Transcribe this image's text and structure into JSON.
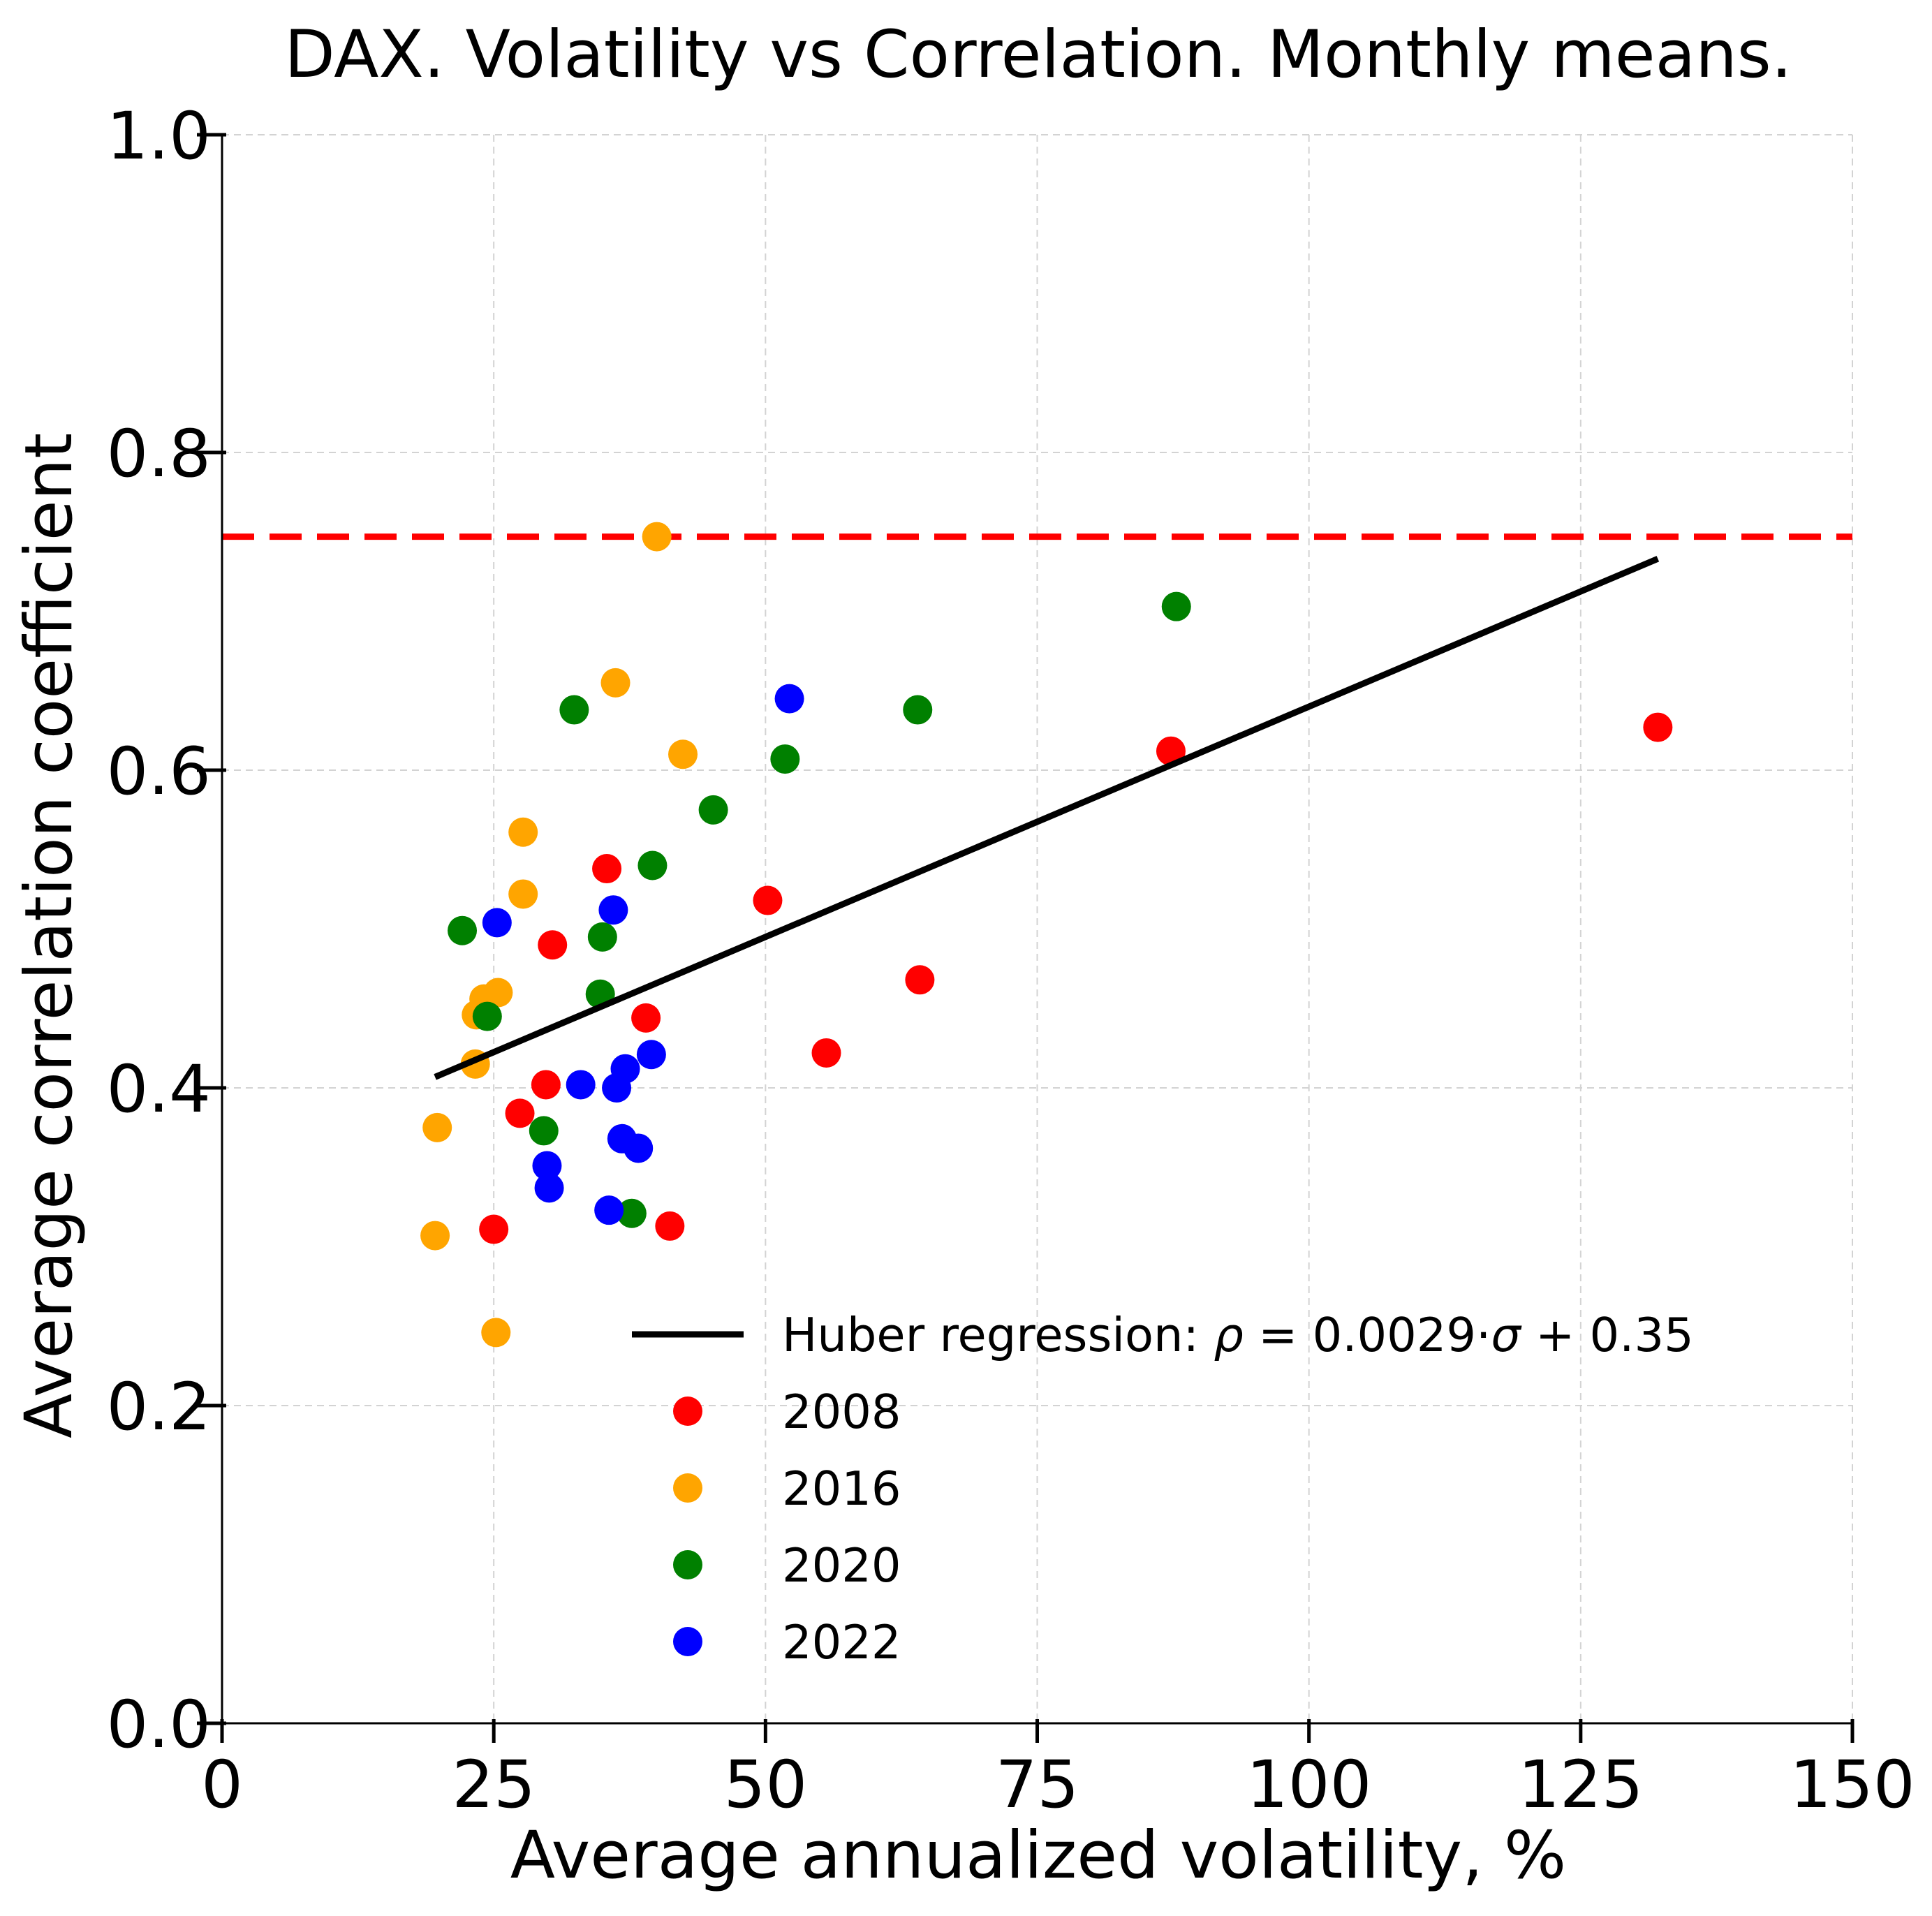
{
  "chart_data": {
    "type": "scatter",
    "title": "DAX. Volatility vs Correlation. Monthly means.",
    "xlabel": "Average annualized volatility, %",
    "ylabel": "Average correlation coefficient",
    "xlim": [
      0,
      150
    ],
    "ylim": [
      0.0,
      1.0
    ],
    "xticks": [
      0,
      25,
      50,
      75,
      100,
      125,
      150
    ],
    "xtick_labels": [
      "0",
      "25",
      "50",
      "75",
      "100",
      "125",
      "150"
    ],
    "yticks": [
      0.0,
      0.2,
      0.4,
      0.6,
      0.8,
      1.0
    ],
    "ytick_labels": [
      "0.0",
      "0.2",
      "0.4",
      "0.6",
      "0.8",
      "1.0"
    ],
    "grid": true,
    "legend_position": "lower-right",
    "reference_line": {
      "y": 0.747,
      "color": "#ff0000",
      "style": "dashed"
    },
    "regression": {
      "label": "Huber regression: ρ = 0.0029·σ + 0.35",
      "label_plain": "Huber regression: ",
      "label_rho": "ρ",
      "label_mid": " = 0.0029·",
      "label_sigma": "σ",
      "label_end": " + 0.35",
      "slope": 0.0029,
      "intercept": 0.35,
      "x_range": [
        19.6,
        132.1
      ],
      "color": "#000000"
    },
    "series": [
      {
        "name": "2008",
        "color": "#ff0000",
        "points": [
          [
            25.0,
            0.311
          ],
          [
            27.4,
            0.384
          ],
          [
            29.8,
            0.402
          ],
          [
            30.4,
            0.49
          ],
          [
            35.4,
            0.538
          ],
          [
            39.0,
            0.444
          ],
          [
            41.2,
            0.313
          ],
          [
            50.2,
            0.518
          ],
          [
            55.6,
            0.422
          ],
          [
            64.2,
            0.468
          ],
          [
            87.3,
            0.612
          ],
          [
            132.1,
            0.627
          ]
        ]
      },
      {
        "name": "2016",
        "color": "#ffa500",
        "points": [
          [
            19.6,
            0.307
          ],
          [
            19.8,
            0.375
          ],
          [
            23.3,
            0.415
          ],
          [
            23.4,
            0.446
          ],
          [
            24.1,
            0.456
          ],
          [
            25.4,
            0.46
          ],
          [
            25.2,
            0.246
          ],
          [
            27.7,
            0.522
          ],
          [
            27.7,
            0.561
          ],
          [
            36.2,
            0.655
          ],
          [
            40.0,
            0.747
          ],
          [
            42.4,
            0.61
          ]
        ]
      },
      {
        "name": "2020",
        "color": "#008000",
        "points": [
          [
            22.1,
            0.499
          ],
          [
            24.4,
            0.445
          ],
          [
            29.6,
            0.373
          ],
          [
            32.4,
            0.638
          ],
          [
            34.8,
            0.459
          ],
          [
            35.0,
            0.495
          ],
          [
            37.7,
            0.321
          ],
          [
            39.6,
            0.54
          ],
          [
            45.2,
            0.575
          ],
          [
            51.8,
            0.607
          ],
          [
            64.0,
            0.638
          ],
          [
            87.8,
            0.703
          ]
        ]
      },
      {
        "name": "2022",
        "color": "#0000ff",
        "points": [
          [
            25.3,
            0.504
          ],
          [
            29.9,
            0.351
          ],
          [
            30.1,
            0.337
          ],
          [
            33.0,
            0.402
          ],
          [
            35.6,
            0.323
          ],
          [
            36.0,
            0.512
          ],
          [
            36.3,
            0.4
          ],
          [
            36.8,
            0.368
          ],
          [
            37.1,
            0.412
          ],
          [
            38.3,
            0.362
          ],
          [
            39.5,
            0.421
          ],
          [
            52.2,
            0.645
          ]
        ]
      }
    ]
  }
}
